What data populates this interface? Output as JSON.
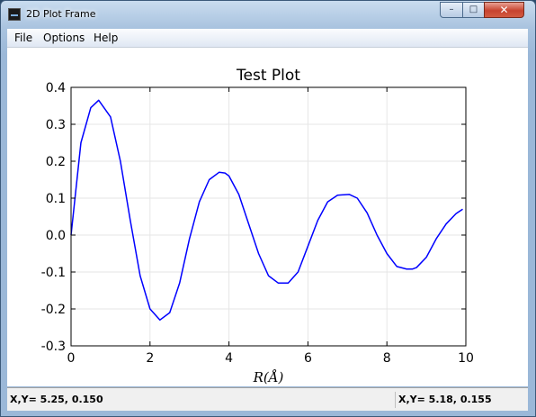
{
  "window": {
    "title": "2D Plot Frame",
    "minimize_glyph": "–",
    "maximize_glyph": "□",
    "close_glyph": "✕"
  },
  "menu": [
    "File",
    "Options",
    "Help"
  ],
  "status": {
    "left": "X,Y= 5.25, 0.150",
    "right": "X,Y= 5.18, 0.155"
  },
  "chart_data": {
    "type": "line",
    "title": "Test Plot",
    "xlabel": "R(Å)",
    "ylabel": "",
    "xlim": [
      0,
      10
    ],
    "ylim": [
      -0.3,
      0.4
    ],
    "xticks": [
      "0",
      "2",
      "4",
      "6",
      "8",
      "10"
    ],
    "yticks": [
      "-0.3",
      "-0.2",
      "-0.1",
      "0.0",
      "0.1",
      "0.2",
      "0.3",
      "0.4"
    ],
    "grid": true,
    "line_color": "#0000ff",
    "series": [
      {
        "x": [
          0,
          0.25,
          0.5,
          0.7,
          1.0,
          1.25,
          1.5,
          1.75,
          2.0,
          2.25,
          2.5,
          2.75,
          3.0,
          3.25,
          3.5,
          3.75,
          3.9,
          4.0,
          4.25,
          4.5,
          4.75,
          5.0,
          5.25,
          5.5,
          5.75,
          6.0,
          6.25,
          6.5,
          6.75,
          7.05,
          7.25,
          7.5,
          7.75,
          8.0,
          8.25,
          8.5,
          8.65,
          8.75,
          9.0,
          9.25,
          9.5,
          9.75,
          9.92
        ],
        "y": [
          0.0,
          0.25,
          0.345,
          0.365,
          0.32,
          0.2,
          0.04,
          -0.11,
          -0.2,
          -0.23,
          -0.21,
          -0.13,
          -0.01,
          0.09,
          0.15,
          0.17,
          0.168,
          0.16,
          0.11,
          0.03,
          -0.05,
          -0.11,
          -0.13,
          -0.13,
          -0.1,
          -0.03,
          0.04,
          0.09,
          0.108,
          0.11,
          0.1,
          0.06,
          0.0,
          -0.05,
          -0.085,
          -0.092,
          -0.092,
          -0.088,
          -0.06,
          -0.01,
          0.03,
          0.058,
          0.07
        ]
      }
    ]
  }
}
